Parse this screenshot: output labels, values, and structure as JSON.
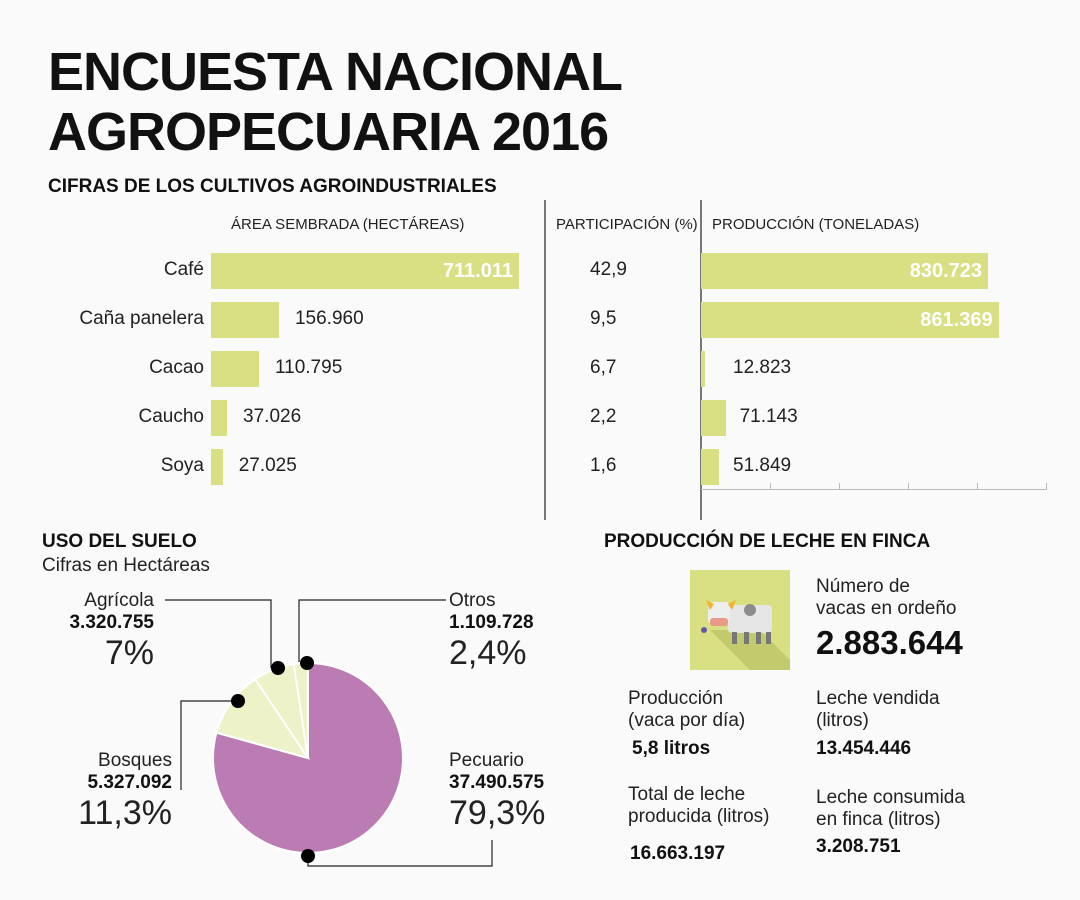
{
  "title_line1": "ENCUESTA NACIONAL",
  "title_line2": "AGROPECUARIA 2016",
  "crops": {
    "section_title": "CIFRAS DE LOS CULTIVOS AGROINDUSTRIALES",
    "col_area": "ÁREA SEMBRADA (HECTÁREAS)",
    "col_part": "PARTICIPACIÓN (%)",
    "col_prod": "PRODUCCIÓN (TONELADAS)",
    "rows": [
      {
        "name": "Café",
        "area": "711.011",
        "part": "42,9",
        "prod": "830.723"
      },
      {
        "name": "Caña panelera",
        "area": "156.960",
        "part": "9,5",
        "prod": "861.369"
      },
      {
        "name": "Cacao",
        "area": "110.795",
        "part": "6,7",
        "prod": "12.823"
      },
      {
        "name": "Caucho",
        "area": "37.026",
        "part": "2,2",
        "prod": "71.143"
      },
      {
        "name": "Soya",
        "area": "27.025",
        "part": "1,6",
        "prod": "51.849"
      }
    ]
  },
  "suelo": {
    "title": "USO DEL SUELO",
    "subtitle": "Cifras en Hectáreas",
    "slices": [
      {
        "name": "Pecuario",
        "value": "37.490.575",
        "pct": "79,3%"
      },
      {
        "name": "Bosques",
        "value": "5.327.092",
        "pct": "11,3%"
      },
      {
        "name": "Agrícola",
        "value": "3.320.755",
        "pct": "7%"
      },
      {
        "name": "Otros",
        "value": "1.109.728",
        "pct": "2,4%"
      }
    ]
  },
  "leche": {
    "title": "PRODUCCIÓN DE LECHE EN FINCA",
    "vacas_label1": "Número de",
    "vacas_label2": "vacas en ordeño",
    "vacas_value": "2.883.644",
    "prod_label1": "Producción",
    "prod_label2": "(vaca por día)",
    "prod_value": "5,8 litros",
    "vendida_label1": "Leche vendida",
    "vendida_label2": "(litros)",
    "vendida_value": "13.454.446",
    "total_label1": "Total de leche",
    "total_label2": "producida (litros)",
    "total_value": "16.663.197",
    "consumida_label1": "Leche consumida",
    "consumida_label2": "en finca (litros)",
    "consumida_value": "3.208.751"
  },
  "colors": {
    "bar": "#d8e083",
    "pecuario": "#bb7bb3",
    "light": "#eef2c8",
    "icon_bg": "#d8e083"
  },
  "chart_data": [
    {
      "type": "bar",
      "title": "ÁREA SEMBRADA (HECTÁREAS)",
      "categories": [
        "Café",
        "Caña panelera",
        "Cacao",
        "Caucho",
        "Soya"
      ],
      "values": [
        711011,
        156960,
        110795,
        37026,
        27025
      ]
    },
    {
      "type": "table",
      "title": "PARTICIPACIÓN (%)",
      "categories": [
        "Café",
        "Caña panelera",
        "Cacao",
        "Caucho",
        "Soya"
      ],
      "values": [
        42.9,
        9.5,
        6.7,
        2.2,
        1.6
      ]
    },
    {
      "type": "bar",
      "title": "PRODUCCIÓN (TONELADAS)",
      "categories": [
        "Café",
        "Caña panelera",
        "Cacao",
        "Caucho",
        "Soya"
      ],
      "values": [
        830723,
        861369,
        12823,
        71143,
        51849
      ]
    },
    {
      "type": "pie",
      "title": "USO DEL SUELO",
      "categories": [
        "Pecuario",
        "Bosques",
        "Agrícola",
        "Otros"
      ],
      "values": [
        79.3,
        11.3,
        7,
        2.4
      ],
      "hectares": [
        37490575,
        5327092,
        3320755,
        1109728
      ]
    }
  ]
}
